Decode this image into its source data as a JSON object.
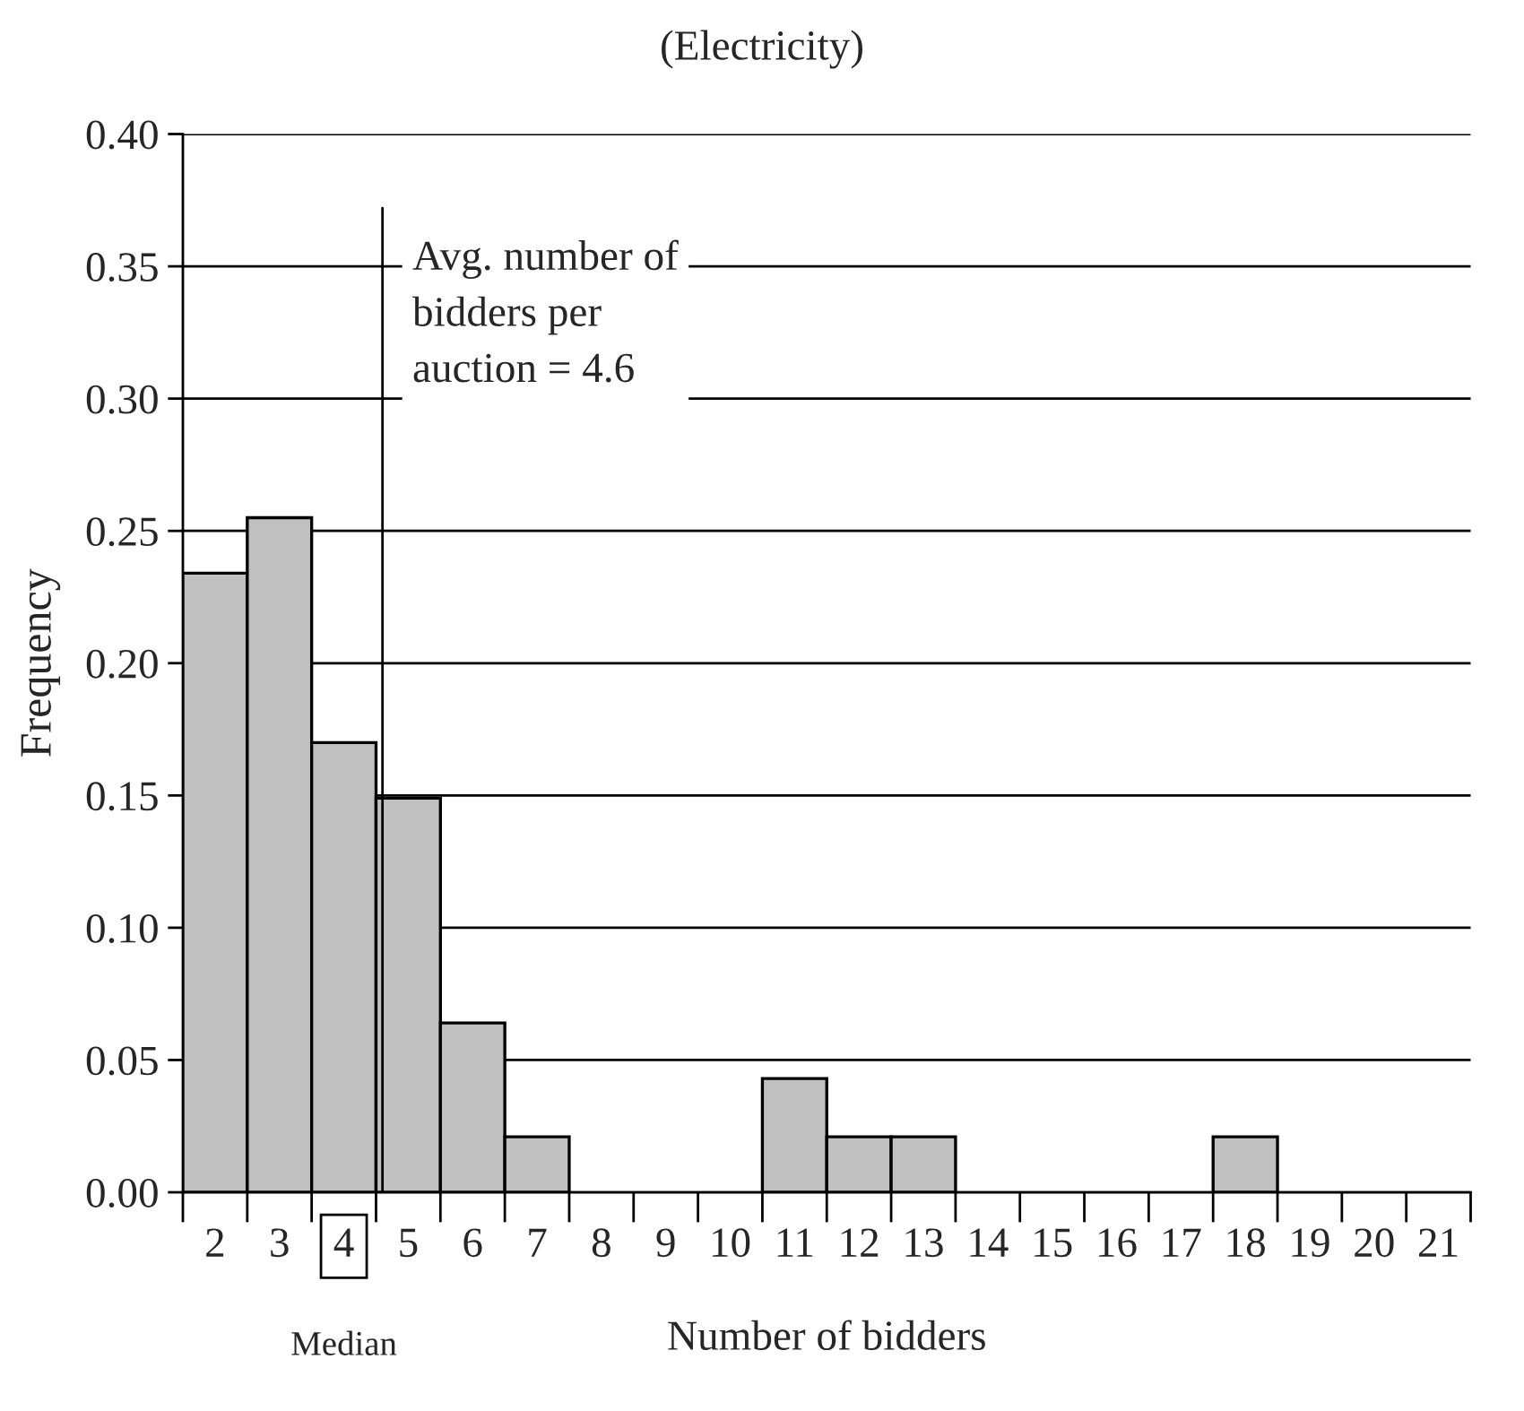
{
  "chart_data": {
    "type": "histogram",
    "title": "(Electricity)",
    "xlabel": "Number of bidders",
    "ylabel": "Frequency",
    "bins": [
      1.5,
      2.5,
      3.5,
      4.5,
      5.5,
      6.5,
      7.5,
      8.5,
      9.5,
      10.5,
      11.5,
      12.5,
      13.5,
      14.5,
      15.5,
      16.5,
      17.5,
      18.5,
      19.5,
      20.5,
      21.5
    ],
    "values": [
      0.234,
      0.255,
      0.17,
      0.149,
      0.064,
      0.021,
      0,
      0,
      0,
      0.043,
      0.021,
      0.021,
      0,
      0,
      0,
      0,
      0.021,
      0,
      0,
      0
    ],
    "color": "#c0c0c0",
    "xlim": [
      1.5,
      21.5
    ],
    "xticks": [
      {
        "value": 2,
        "label": "2"
      },
      {
        "value": 3,
        "label": "3"
      },
      {
        "value": 4,
        "label": "4"
      },
      {
        "value": 5,
        "label": "5"
      },
      {
        "value": 6,
        "label": "6"
      },
      {
        "value": 7,
        "label": "7"
      },
      {
        "value": 8,
        "label": "8"
      },
      {
        "value": 9,
        "label": "9"
      },
      {
        "value": 10,
        "label": "10"
      },
      {
        "value": 11,
        "label": "11"
      },
      {
        "value": 12,
        "label": "12"
      },
      {
        "value": 13,
        "label": "13"
      },
      {
        "value": 14,
        "label": "14"
      },
      {
        "value": 15,
        "label": "15"
      },
      {
        "value": 16,
        "label": "16"
      },
      {
        "value": 17,
        "label": "17"
      },
      {
        "value": 18,
        "label": "18"
      },
      {
        "value": 19,
        "label": "19"
      },
      {
        "value": 20,
        "label": "20"
      },
      {
        "value": 21,
        "label": "21"
      }
    ],
    "ylim": [
      0,
      0.4
    ],
    "yticks": [
      {
        "value": 0,
        "label": "0.00"
      },
      {
        "value": 0.05,
        "label": "0.05"
      },
      {
        "value": 0.1,
        "label": "0.10"
      },
      {
        "value": 0.15,
        "label": "0.15"
      },
      {
        "value": 0.2,
        "label": "0.20"
      },
      {
        "value": 0.25,
        "label": "0.25"
      },
      {
        "value": 0.3,
        "label": "0.30"
      },
      {
        "value": 0.35,
        "label": "0.35"
      },
      {
        "value": 0.4,
        "label": "0.40"
      }
    ],
    "grid": "y",
    "ref_lines": [
      {
        "axis": "x",
        "value": 4.6,
        "label": "Avg. number of\nbidders per\nauction = 4.6",
        "color": "#000000"
      }
    ],
    "annotations": [
      "Median"
    ]
  }
}
